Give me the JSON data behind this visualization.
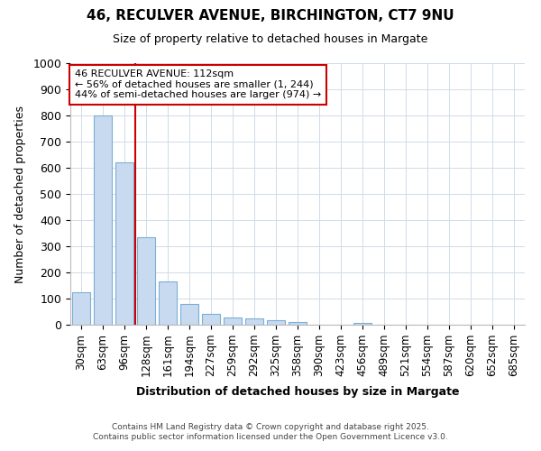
{
  "title1": "46, RECULVER AVENUE, BIRCHINGTON, CT7 9NU",
  "title2": "Size of property relative to detached houses in Margate",
  "xlabel": "Distribution of detached houses by size in Margate",
  "ylabel": "Number of detached properties",
  "bin_labels": [
    "30sqm",
    "63sqm",
    "96sqm",
    "128sqm",
    "161sqm",
    "194sqm",
    "227sqm",
    "259sqm",
    "292sqm",
    "325sqm",
    "358sqm",
    "390sqm",
    "423sqm",
    "456sqm",
    "489sqm",
    "521sqm",
    "554sqm",
    "587sqm",
    "620sqm",
    "652sqm",
    "685sqm"
  ],
  "values": [
    125,
    800,
    620,
    335,
    165,
    80,
    40,
    28,
    25,
    18,
    12,
    0,
    0,
    8,
    0,
    0,
    0,
    0,
    0,
    0,
    0
  ],
  "bar_color": "#c8daf0",
  "bar_edge_color": "#7bafd4",
  "red_line_after_index": 2,
  "annotation_line1": "46 RECULVER AVENUE: 112sqm",
  "annotation_line2": "← 56% of detached houses are smaller (1, 244)",
  "annotation_line3": "44% of semi-detached houses are larger (974) →",
  "annotation_box_color": "#ffffff",
  "annotation_box_edge": "#cc0000",
  "red_line_color": "#cc0000",
  "footer1": "Contains HM Land Registry data © Crown copyright and database right 2025.",
  "footer2": "Contains public sector information licensed under the Open Government Licence v3.0.",
  "ylim": [
    0,
    1000
  ],
  "background_color": "#ffffff",
  "grid_color": "#d0dce8"
}
